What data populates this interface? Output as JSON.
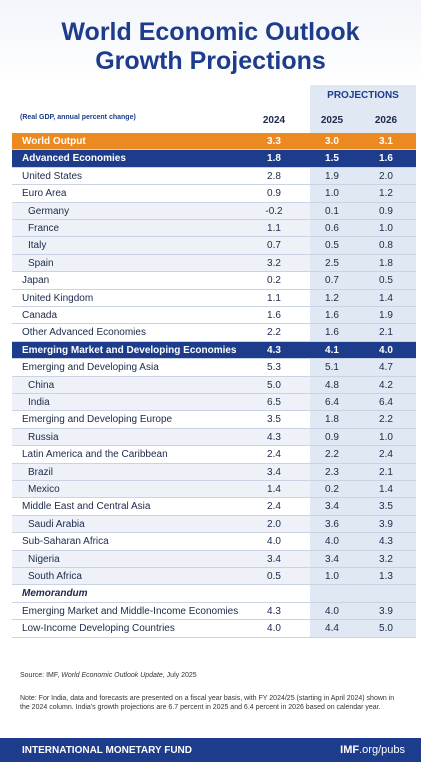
{
  "header": {
    "title_line1": "World Economic Outlook",
    "title_line2": "Growth Projections",
    "projections": "PROJECTIONS",
    "units": "(Real GDP, annual percent change)",
    "columns": [
      "2024",
      "2025",
      "2026"
    ]
  },
  "table": {
    "rows": [
      {
        "style": "world",
        "cells": [
          "World Output",
          "3.3",
          "3.0",
          "3.1"
        ]
      },
      {
        "style": "group",
        "cells": [
          "Advanced Economies",
          "1.8",
          "1.5",
          "1.6"
        ]
      },
      {
        "style": "region",
        "cells": [
          "United States",
          "2.8",
          "1.9",
          "2.0"
        ]
      },
      {
        "style": "region",
        "cells": [
          "Euro Area",
          "0.9",
          "1.0",
          "1.2"
        ]
      },
      {
        "style": "country",
        "cells": [
          "Germany",
          "-0.2",
          "0.1",
          "0.9"
        ]
      },
      {
        "style": "country",
        "cells": [
          "France",
          "1.1",
          "0.6",
          "1.0"
        ]
      },
      {
        "style": "country",
        "cells": [
          "Italy",
          "0.7",
          "0.5",
          "0.8"
        ]
      },
      {
        "style": "country",
        "cells": [
          "Spain",
          "3.2",
          "2.5",
          "1.8"
        ]
      },
      {
        "style": "region",
        "cells": [
          "Japan",
          "0.2",
          "0.7",
          "0.5"
        ]
      },
      {
        "style": "region",
        "cells": [
          "United Kingdom",
          "1.1",
          "1.2",
          "1.4"
        ]
      },
      {
        "style": "region",
        "cells": [
          "Canada",
          "1.6",
          "1.6",
          "1.9"
        ]
      },
      {
        "style": "region",
        "cells": [
          "Other Advanced Economies",
          "2.2",
          "1.6",
          "2.1"
        ]
      },
      {
        "style": "group",
        "cells": [
          "Emerging Market and Developing Economies",
          "4.3",
          "4.1",
          "4.0"
        ]
      },
      {
        "style": "region",
        "cells": [
          "Emerging and Developing Asia",
          "5.3",
          "5.1",
          "4.7"
        ]
      },
      {
        "style": "country",
        "cells": [
          "China",
          "5.0",
          "4.8",
          "4.2"
        ]
      },
      {
        "style": "country",
        "cells": [
          "India",
          "6.5",
          "6.4",
          "6.4"
        ]
      },
      {
        "style": "region",
        "cells": [
          "Emerging and Developing Europe",
          "3.5",
          "1.8",
          "2.2"
        ]
      },
      {
        "style": "country",
        "cells": [
          "Russia",
          "4.3",
          "0.9",
          "1.0"
        ]
      },
      {
        "style": "region",
        "cells": [
          "Latin America and the Caribbean",
          "2.4",
          "2.2",
          "2.4"
        ]
      },
      {
        "style": "country",
        "cells": [
          "Brazil",
          "3.4",
          "2.3",
          "2.1"
        ]
      },
      {
        "style": "country",
        "cells": [
          "Mexico",
          "1.4",
          "0.2",
          "1.4"
        ]
      },
      {
        "style": "region",
        "cells": [
          "Middle East and Central Asia",
          "2.4",
          "3.4",
          "3.5"
        ]
      },
      {
        "style": "country",
        "cells": [
          "Saudi Arabia",
          "2.0",
          "3.6",
          "3.9"
        ]
      },
      {
        "style": "region",
        "cells": [
          "Sub-Saharan Africa",
          "4.0",
          "4.0",
          "4.3"
        ]
      },
      {
        "style": "country",
        "cells": [
          "Nigeria",
          "3.4",
          "3.4",
          "3.2"
        ]
      },
      {
        "style": "country",
        "cells": [
          "South Africa",
          "0.5",
          "1.0",
          "1.3"
        ]
      },
      {
        "style": "memo",
        "cells": [
          "Memorandum"
        ]
      },
      {
        "style": "region",
        "cells": [
          "Emerging Market and Middle-Income Economies",
          "4.3",
          "4.0",
          "3.9"
        ]
      },
      {
        "style": "region",
        "cells": [
          "Low-Income Developing Countries",
          "4.0",
          "4.4",
          "5.0"
        ]
      }
    ]
  },
  "footer": {
    "source_prefix": "Source: IMF, ",
    "source_title": "World Economic Outlook Update",
    "source_suffix": ", July 2025",
    "note": "Note: For India, data and forecasts are presented on a fiscal year basis, with FY 2024/25 (starting in April 2024) shown in the 2024 column. India's growth projections are 6.7 percent in 2025 and 6.4 percent in 2026 based on calendar year.",
    "org": "INTERNATIONAL MONETARY FUND",
    "site_bold": "IMF",
    ".site_rest": null,
    "site_rest": ".org/pubs"
  }
}
